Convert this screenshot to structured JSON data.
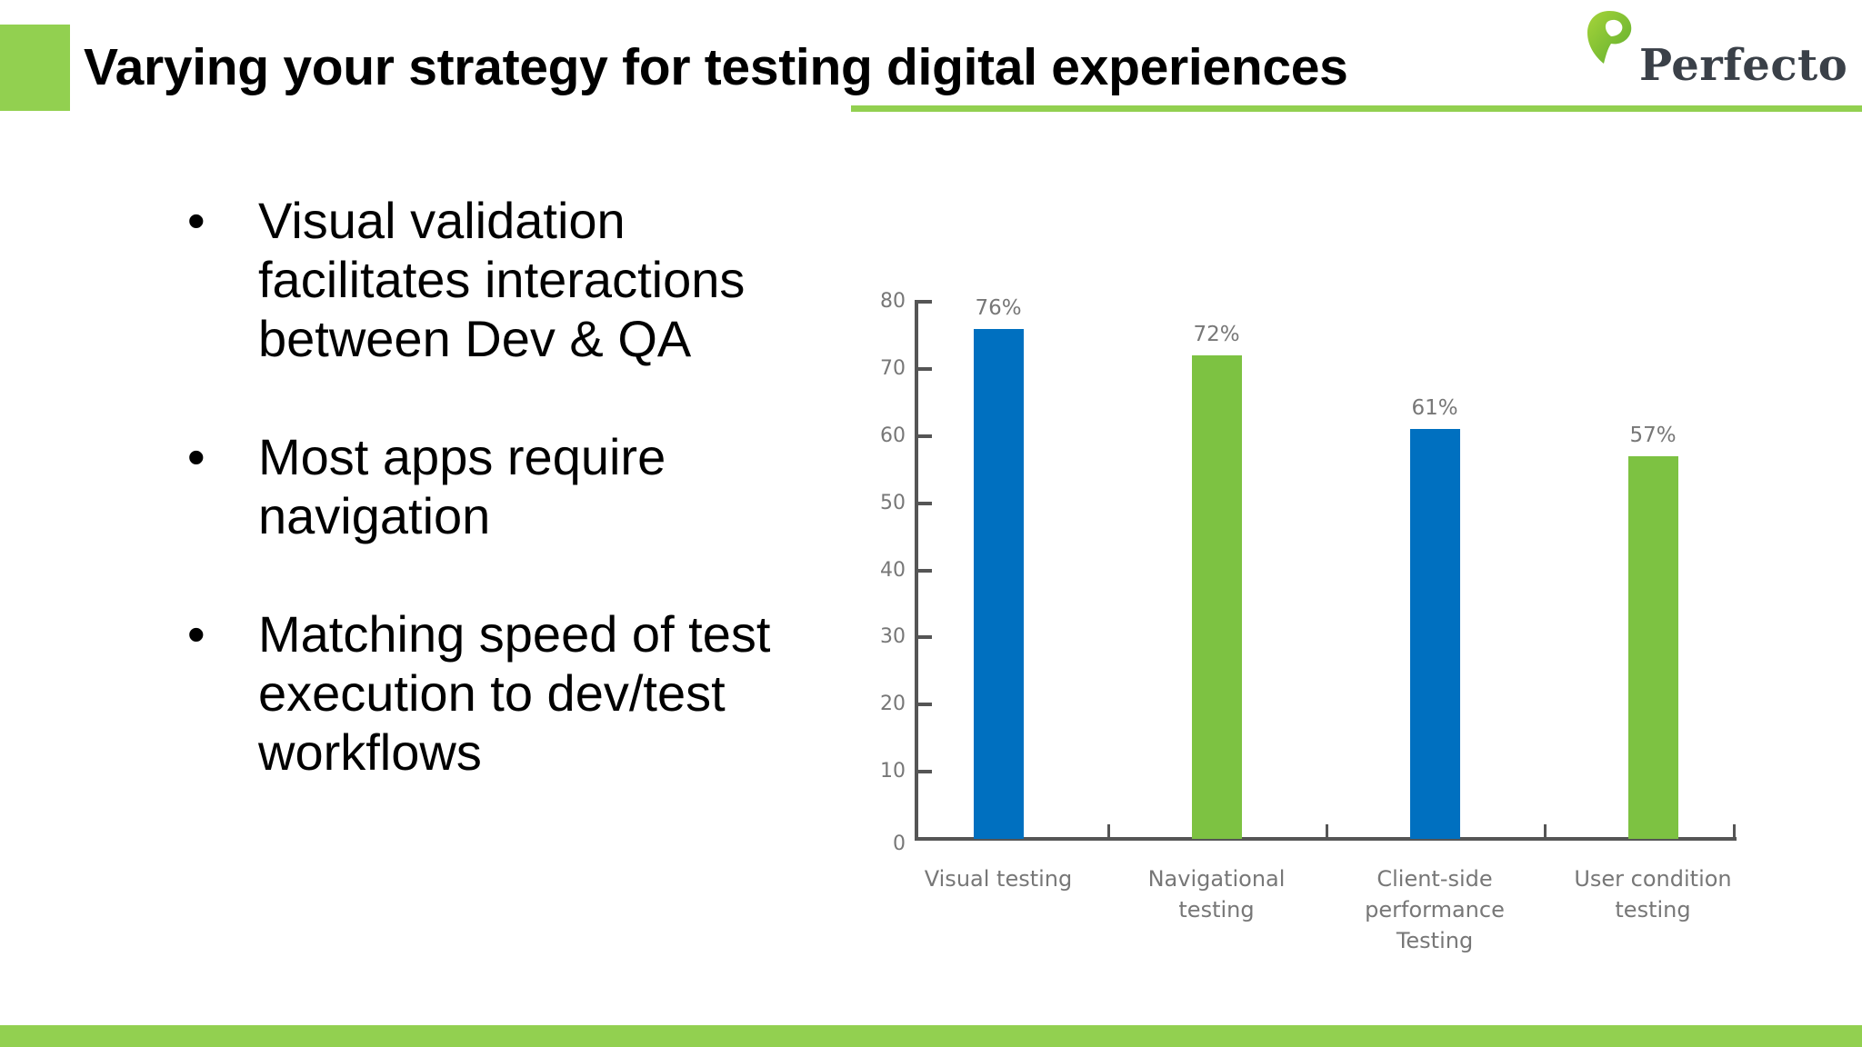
{
  "slide": {
    "title": "Varying your strategy for testing digital experiences",
    "logo": {
      "icon": "perfecto-leaf-icon",
      "text": "Perfecto"
    },
    "colors": {
      "accent_green": "#92D050",
      "bar_blue": "#0070C0",
      "bar_green": "#7DC242",
      "axis": "#555555",
      "label": "#777777"
    }
  },
  "bullets": [
    {
      "lines": [
        "Visual validation",
        "facilitates interactions",
        "between Dev & QA"
      ]
    },
    {
      "lines": [
        "Most apps require",
        "navigation"
      ]
    },
    {
      "lines": [
        "Matching speed of test",
        "execution to dev/test",
        "workflows"
      ]
    }
  ],
  "chart_data": {
    "type": "bar",
    "title": "",
    "xlabel": "",
    "ylabel": "",
    "ylim": [
      0,
      80
    ],
    "yticks": [
      0,
      10,
      20,
      30,
      40,
      50,
      60,
      70,
      80
    ],
    "grid": false,
    "legend": null,
    "categories": [
      "Visual testing",
      "Navigational testing",
      "Client-side performance Testing",
      "User condition testing"
    ],
    "category_label_lines": [
      [
        "Visual testing"
      ],
      [
        "Navigational",
        "testing"
      ],
      [
        "Client-side",
        "performance",
        "Testing"
      ],
      [
        "User condition",
        "testing"
      ]
    ],
    "values": [
      76,
      72,
      61,
      57
    ],
    "value_labels": [
      "76%",
      "72%",
      "61%",
      "57%"
    ],
    "bar_colors": [
      "#0070C0",
      "#7DC242",
      "#0070C0",
      "#7DC242"
    ]
  }
}
